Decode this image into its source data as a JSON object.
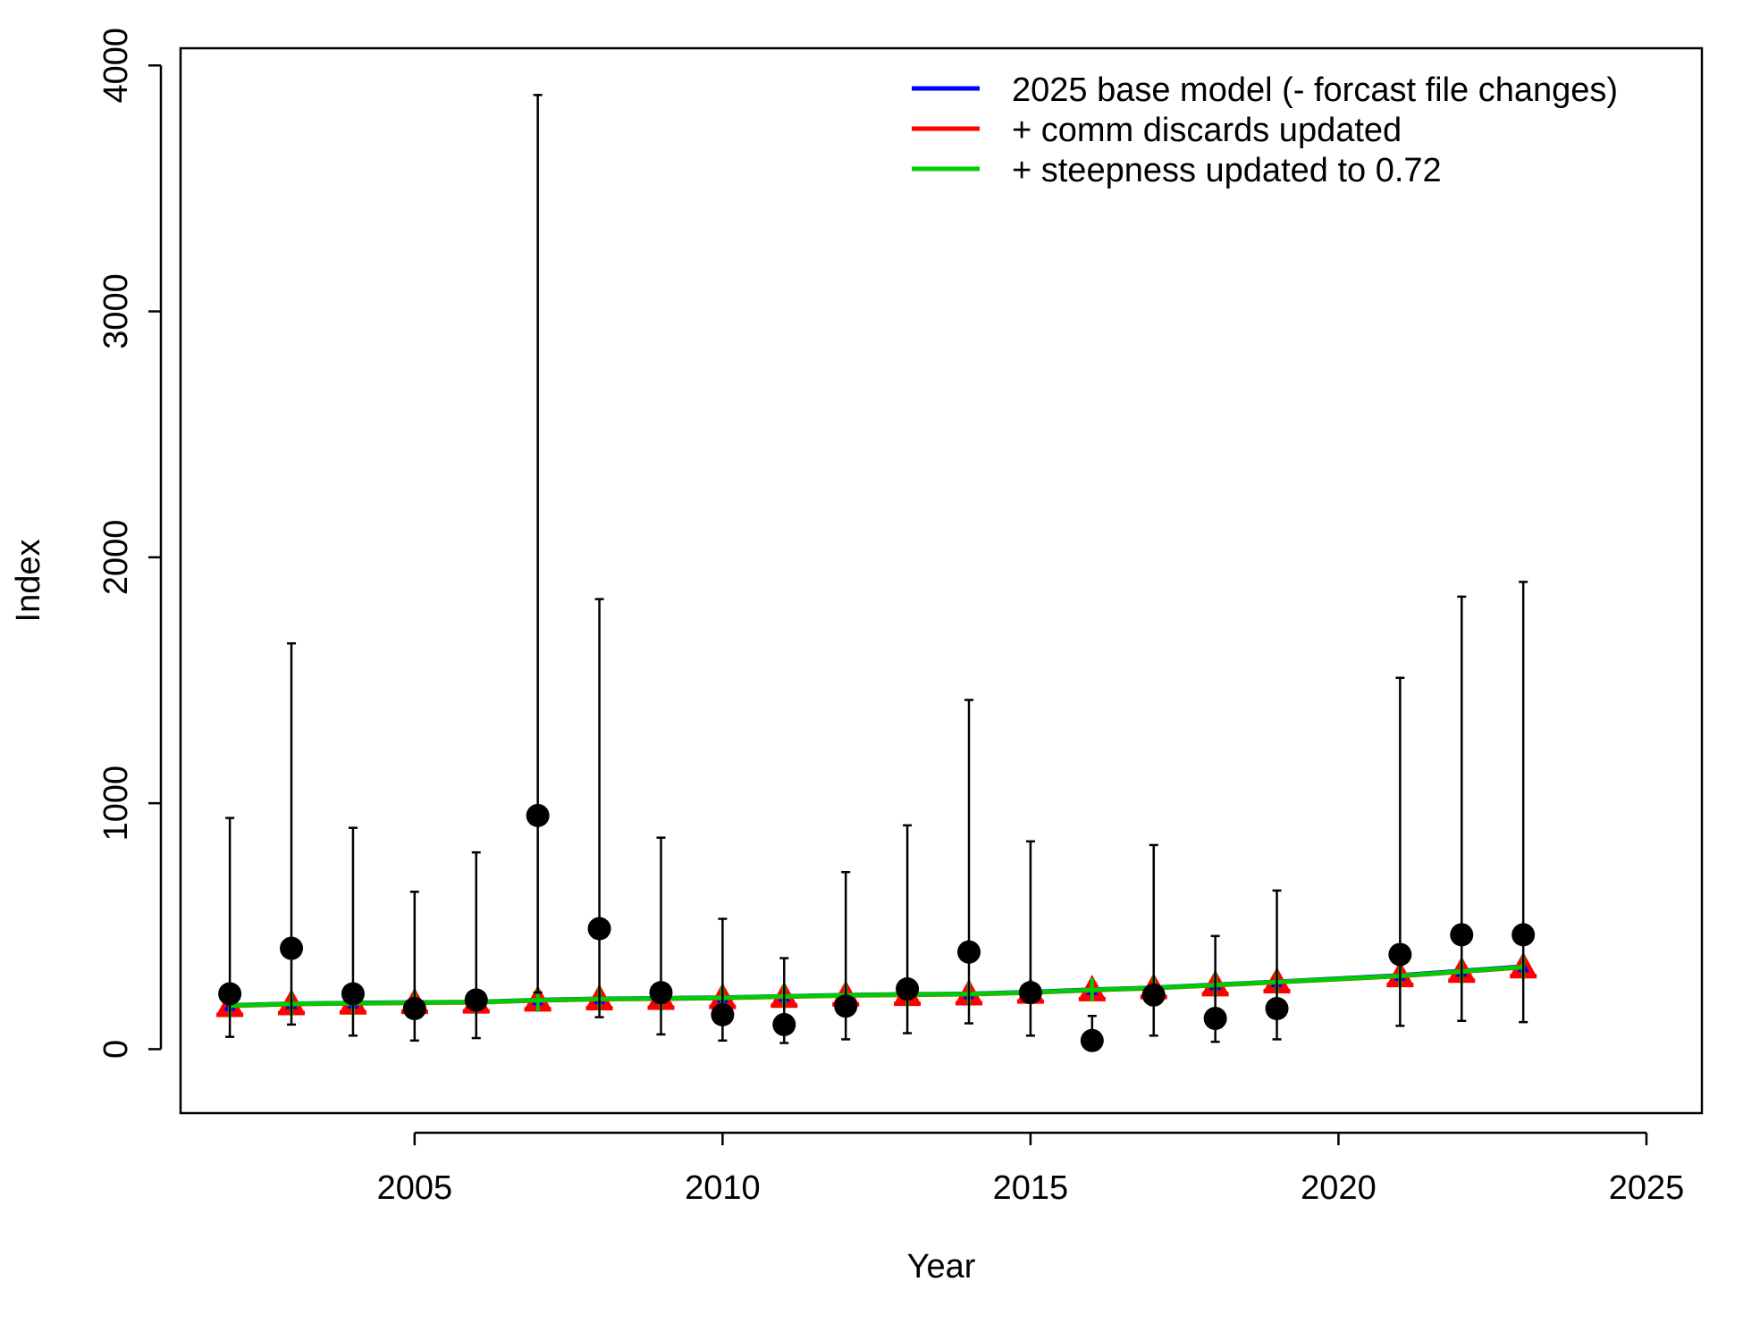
{
  "chart_data": {
    "type": "scatter",
    "xlabel": "Year",
    "ylabel": "Index",
    "xlim": [
      2001.2,
      2025.9
    ],
    "ylim": [
      -260,
      4070
    ],
    "x_ticks": [
      2005,
      2010,
      2015,
      2020,
      2025
    ],
    "y_ticks": [
      0,
      1000,
      2000,
      3000,
      4000
    ],
    "grid": false,
    "legend_position": "top-right",
    "observed": {
      "years": [
        2002,
        2003,
        2004,
        2005,
        2006,
        2007,
        2008,
        2009,
        2010,
        2011,
        2012,
        2013,
        2014,
        2015,
        2016,
        2017,
        2018,
        2019,
        2021,
        2022,
        2023
      ],
      "values": [
        225,
        410,
        225,
        165,
        200,
        950,
        490,
        230,
        140,
        100,
        175,
        245,
        395,
        230,
        35,
        220,
        125,
        165,
        385,
        465,
        465
      ],
      "lower": [
        50,
        100,
        55,
        35,
        45,
        230,
        130,
        60,
        35,
        25,
        40,
        65,
        105,
        55,
        10,
        55,
        30,
        40,
        95,
        115,
        110
      ],
      "upper": [
        940,
        1650,
        900,
        640,
        800,
        3880,
        1830,
        860,
        530,
        370,
        720,
        910,
        1420,
        845,
        135,
        830,
        460,
        645,
        1510,
        1840,
        1900
      ]
    },
    "series": [
      {
        "name": "2025 base model (- forcast file changes)",
        "color": "#0000ff",
        "years": [
          2002,
          2003,
          2004,
          2005,
          2006,
          2007,
          2008,
          2009,
          2010,
          2011,
          2012,
          2013,
          2014,
          2015,
          2016,
          2017,
          2018,
          2019,
          2021,
          2022,
          2023
        ],
        "values": [
          178,
          185,
          188,
          190,
          192,
          200,
          205,
          207,
          210,
          215,
          220,
          223,
          225,
          232,
          242,
          250,
          262,
          274,
          300,
          318,
          336
        ]
      },
      {
        "name": "+ comm discards updated",
        "color": "#ff0000",
        "years": [
          2002,
          2003,
          2004,
          2005,
          2006,
          2007,
          2008,
          2009,
          2010,
          2011,
          2012,
          2013,
          2014,
          2015,
          2016,
          2017,
          2018,
          2019,
          2021,
          2022,
          2023
        ],
        "values": [
          176,
          183,
          186,
          188,
          190,
          198,
          203,
          205,
          208,
          213,
          218,
          221,
          223,
          230,
          240,
          248,
          260,
          272,
          297,
          315,
          333
        ]
      },
      {
        "name": "+ steepness updated to 0.72",
        "color": "#00cd00",
        "years": [
          2002,
          2003,
          2004,
          2005,
          2006,
          2007,
          2008,
          2009,
          2010,
          2011,
          2012,
          2013,
          2014,
          2015,
          2016,
          2017,
          2018,
          2019,
          2021,
          2022,
          2023
        ],
        "values": [
          177,
          184,
          187,
          189,
          191,
          199,
          204,
          206,
          209,
          214,
          219,
          222,
          224,
          231,
          241,
          249,
          261,
          273,
          298,
          316,
          334
        ]
      }
    ]
  }
}
